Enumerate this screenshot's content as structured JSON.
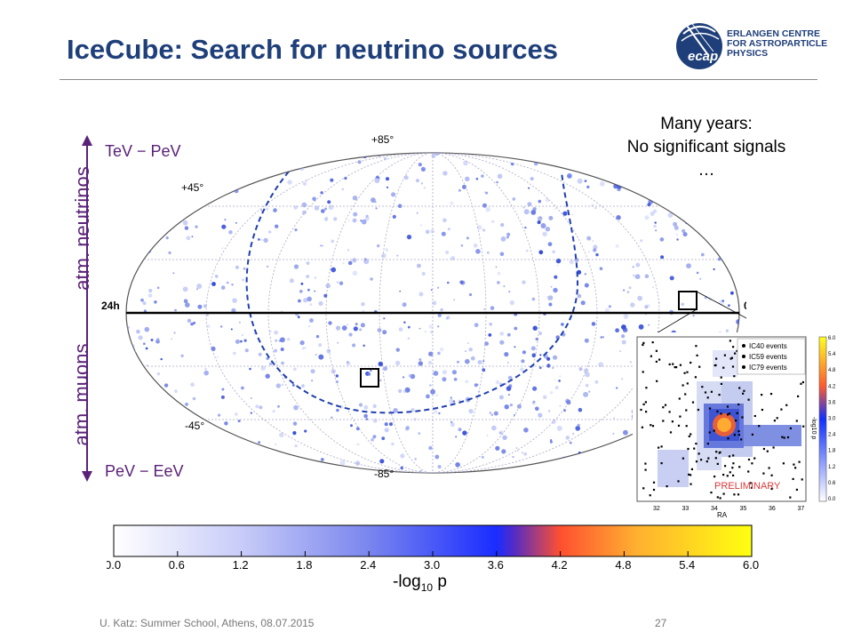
{
  "slide": {
    "title": "IceCube: Search for neutrino sources",
    "note_lines": [
      "Many years:",
      "No significant signals",
      "…"
    ],
    "footer": "U. Katz: Summer School, Athens, 08.07.2015",
    "page_number": "27"
  },
  "logo": {
    "lines": [
      "ERLANGEN CENTRE",
      "FOR ASTROPARTICLE",
      "PHYSICS"
    ],
    "mark": "ecap"
  },
  "side_labels": {
    "upper": "atm. neutrinos",
    "lower": "atm. muons",
    "top_energy": "TeV − PeV",
    "bottom_energy": "PeV − EeV"
  },
  "sky_map": {
    "dec_labels": [
      "+85°",
      "+45°",
      "-45°",
      "-85°"
    ],
    "ra_left": "24h",
    "ra_right": "0h"
  },
  "colorbar": {
    "ticks": [
      "0.0",
      "0.6",
      "1.2",
      "1.8",
      "2.4",
      "3.0",
      "3.6",
      "4.2",
      "4.8",
      "5.4",
      "6.0"
    ],
    "label_main": "-log",
    "label_sub": "10",
    "label_tail": " p"
  },
  "inset": {
    "legend": [
      "IC40 events",
      "IC59 events",
      "IC79 events"
    ],
    "x_ticks": [
      "32",
      "33",
      "34",
      "35",
      "36",
      "37"
    ],
    "x_label": "RA",
    "cbar_ticks": [
      "6.0",
      "5.4",
      "4.8",
      "4.2",
      "3.6",
      "3.0",
      "2.4",
      "1.8",
      "1.2",
      "0.6",
      "0.0"
    ],
    "cbar_label": "-log10 p",
    "stamp": "PRELIMINARY"
  },
  "colors": {
    "title": "#1f3f7a",
    "side_label": "#5a2178",
    "map_blue": "#2f4fe0",
    "stamp": "#d83a3a"
  }
}
